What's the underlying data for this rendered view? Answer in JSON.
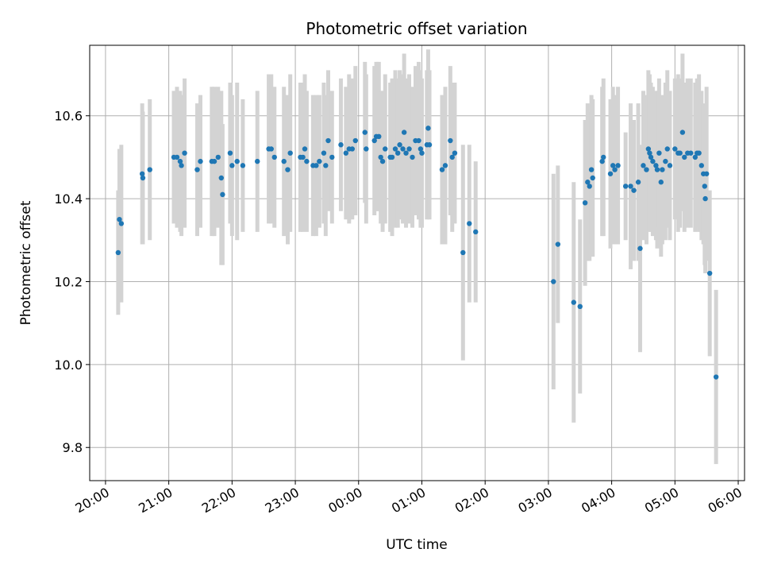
{
  "chart_data": {
    "type": "scatter",
    "title": "Photometric offset variation",
    "xlabel": "UTC time",
    "ylabel": "Photometric offset",
    "grid": true,
    "x_unit": "hours since 20:00 UTC",
    "xlim": [
      -0.25,
      10.1
    ],
    "ylim": [
      9.72,
      10.77
    ],
    "x_ticks": [
      0,
      1,
      2,
      3,
      4,
      5,
      6,
      7,
      8,
      9,
      10
    ],
    "x_tick_labels": [
      "20:00",
      "21:00",
      "22:00",
      "23:00",
      "00:00",
      "01:00",
      "02:00",
      "03:00",
      "04:00",
      "05:00",
      "06:00"
    ],
    "y_ticks": [
      9.8,
      10.0,
      10.2,
      10.4,
      10.6
    ],
    "y_tick_labels": [
      "9.8",
      "10.0",
      "10.2",
      "10.4",
      "10.6"
    ],
    "point_color": "#1f77b4",
    "errorbar_color": "#d3d3d3",
    "series": [
      {
        "name": "offset",
        "points": [
          [
            0.2,
            10.27,
            0.15
          ],
          [
            0.22,
            10.35,
            0.17
          ],
          [
            0.25,
            10.34,
            0.19
          ],
          [
            0.58,
            10.46,
            0.17
          ],
          [
            0.59,
            10.45,
            0.16
          ],
          [
            0.7,
            10.47,
            0.17
          ],
          [
            1.08,
            10.5,
            0.16
          ],
          [
            1.13,
            10.5,
            0.17
          ],
          [
            1.18,
            10.49,
            0.17
          ],
          [
            1.2,
            10.48,
            0.17
          ],
          [
            1.25,
            10.51,
            0.18
          ],
          [
            1.45,
            10.47,
            0.16
          ],
          [
            1.5,
            10.49,
            0.16
          ],
          [
            1.68,
            10.49,
            0.18
          ],
          [
            1.72,
            10.49,
            0.18
          ],
          [
            1.78,
            10.5,
            0.17
          ],
          [
            1.83,
            10.45,
            0.21
          ],
          [
            1.85,
            10.41,
            0.17
          ],
          [
            1.97,
            10.51,
            0.17
          ],
          [
            2.0,
            10.48,
            0.17
          ],
          [
            2.08,
            10.49,
            0.19
          ],
          [
            2.17,
            10.48,
            0.16
          ],
          [
            2.4,
            10.49,
            0.17
          ],
          [
            2.58,
            10.52,
            0.18
          ],
          [
            2.62,
            10.52,
            0.18
          ],
          [
            2.67,
            10.5,
            0.17
          ],
          [
            2.82,
            10.49,
            0.18
          ],
          [
            2.88,
            10.47,
            0.18
          ],
          [
            2.92,
            10.51,
            0.19
          ],
          [
            3.08,
            10.5,
            0.18
          ],
          [
            3.12,
            10.5,
            0.18
          ],
          [
            3.15,
            10.52,
            0.18
          ],
          [
            3.18,
            10.49,
            0.17
          ],
          [
            3.28,
            10.48,
            0.17
          ],
          [
            3.33,
            10.48,
            0.17
          ],
          [
            3.38,
            10.49,
            0.16
          ],
          [
            3.45,
            10.51,
            0.17
          ],
          [
            3.48,
            10.48,
            0.17
          ],
          [
            3.52,
            10.54,
            0.17
          ],
          [
            3.58,
            10.5,
            0.16
          ],
          [
            3.72,
            10.53,
            0.16
          ],
          [
            3.8,
            10.51,
            0.16
          ],
          [
            3.85,
            10.52,
            0.18
          ],
          [
            3.9,
            10.52,
            0.17
          ],
          [
            3.95,
            10.54,
            0.18
          ],
          [
            4.1,
            10.56,
            0.17
          ],
          [
            4.12,
            10.52,
            0.18
          ],
          [
            4.25,
            10.54,
            0.18
          ],
          [
            4.28,
            10.55,
            0.18
          ],
          [
            4.32,
            10.55,
            0.18
          ],
          [
            4.35,
            10.5,
            0.16
          ],
          [
            4.38,
            10.49,
            0.17
          ],
          [
            4.42,
            10.52,
            0.18
          ],
          [
            4.5,
            10.5,
            0.18
          ],
          [
            4.53,
            10.5,
            0.19
          ],
          [
            4.58,
            10.52,
            0.19
          ],
          [
            4.62,
            10.51,
            0.18
          ],
          [
            4.65,
            10.53,
            0.18
          ],
          [
            4.7,
            10.52,
            0.18
          ],
          [
            4.72,
            10.56,
            0.19
          ],
          [
            4.75,
            10.51,
            0.18
          ],
          [
            4.8,
            10.52,
            0.18
          ],
          [
            4.85,
            10.5,
            0.17
          ],
          [
            4.9,
            10.54,
            0.18
          ],
          [
            4.95,
            10.54,
            0.19
          ],
          [
            4.98,
            10.52,
            0.19
          ],
          [
            5.0,
            10.51,
            0.18
          ],
          [
            5.08,
            10.53,
            0.18
          ],
          [
            5.1,
            10.57,
            0.19
          ],
          [
            5.12,
            10.53,
            0.18
          ],
          [
            5.32,
            10.47,
            0.18
          ],
          [
            5.37,
            10.48,
            0.19
          ],
          [
            5.45,
            10.54,
            0.18
          ],
          [
            5.48,
            10.5,
            0.18
          ],
          [
            5.52,
            10.51,
            0.17
          ],
          [
            5.65,
            10.27,
            0.26
          ],
          [
            5.75,
            10.34,
            0.19
          ],
          [
            5.85,
            10.32,
            0.17
          ],
          [
            7.08,
            10.2,
            0.26
          ],
          [
            7.15,
            10.29,
            0.19
          ],
          [
            7.4,
            10.15,
            0.29
          ],
          [
            7.5,
            10.14,
            0.21
          ],
          [
            7.58,
            10.39,
            0.2
          ],
          [
            7.62,
            10.44,
            0.19
          ],
          [
            7.65,
            10.43,
            0.18
          ],
          [
            7.68,
            10.47,
            0.18
          ],
          [
            7.7,
            10.45,
            0.19
          ],
          [
            7.85,
            10.49,
            0.18
          ],
          [
            7.87,
            10.5,
            0.19
          ],
          [
            7.98,
            10.46,
            0.18
          ],
          [
            8.02,
            10.48,
            0.19
          ],
          [
            8.05,
            10.47,
            0.18
          ],
          [
            8.1,
            10.48,
            0.19
          ],
          [
            8.22,
            10.43,
            0.13
          ],
          [
            8.3,
            10.43,
            0.2
          ],
          [
            8.35,
            10.42,
            0.17
          ],
          [
            8.42,
            10.44,
            0.19
          ],
          [
            8.45,
            10.28,
            0.25
          ],
          [
            8.5,
            10.48,
            0.18
          ],
          [
            8.55,
            10.47,
            0.18
          ],
          [
            8.58,
            10.52,
            0.19
          ],
          [
            8.6,
            10.51,
            0.19
          ],
          [
            8.62,
            10.5,
            0.18
          ],
          [
            8.65,
            10.49,
            0.18
          ],
          [
            8.7,
            10.48,
            0.18
          ],
          [
            8.72,
            10.47,
            0.19
          ],
          [
            8.75,
            10.51,
            0.18
          ],
          [
            8.78,
            10.44,
            0.18
          ],
          [
            8.8,
            10.47,
            0.18
          ],
          [
            8.85,
            10.49,
            0.19
          ],
          [
            8.88,
            10.52,
            0.19
          ],
          [
            8.92,
            10.48,
            0.18
          ],
          [
            9.0,
            10.52,
            0.17
          ],
          [
            9.05,
            10.51,
            0.19
          ],
          [
            9.08,
            10.51,
            0.18
          ],
          [
            9.12,
            10.56,
            0.19
          ],
          [
            9.15,
            10.5,
            0.18
          ],
          [
            9.2,
            10.51,
            0.18
          ],
          [
            9.25,
            10.51,
            0.18
          ],
          [
            9.32,
            10.5,
            0.18
          ],
          [
            9.35,
            10.51,
            0.18
          ],
          [
            9.38,
            10.51,
            0.19
          ],
          [
            9.42,
            10.48,
            0.18
          ],
          [
            9.45,
            10.46,
            0.17
          ],
          [
            9.47,
            10.43,
            0.19
          ],
          [
            9.48,
            10.4,
            0.18
          ],
          [
            9.5,
            10.46,
            0.21
          ],
          [
            9.55,
            10.22,
            0.2
          ],
          [
            9.65,
            9.97,
            0.21
          ]
        ]
      }
    ]
  }
}
